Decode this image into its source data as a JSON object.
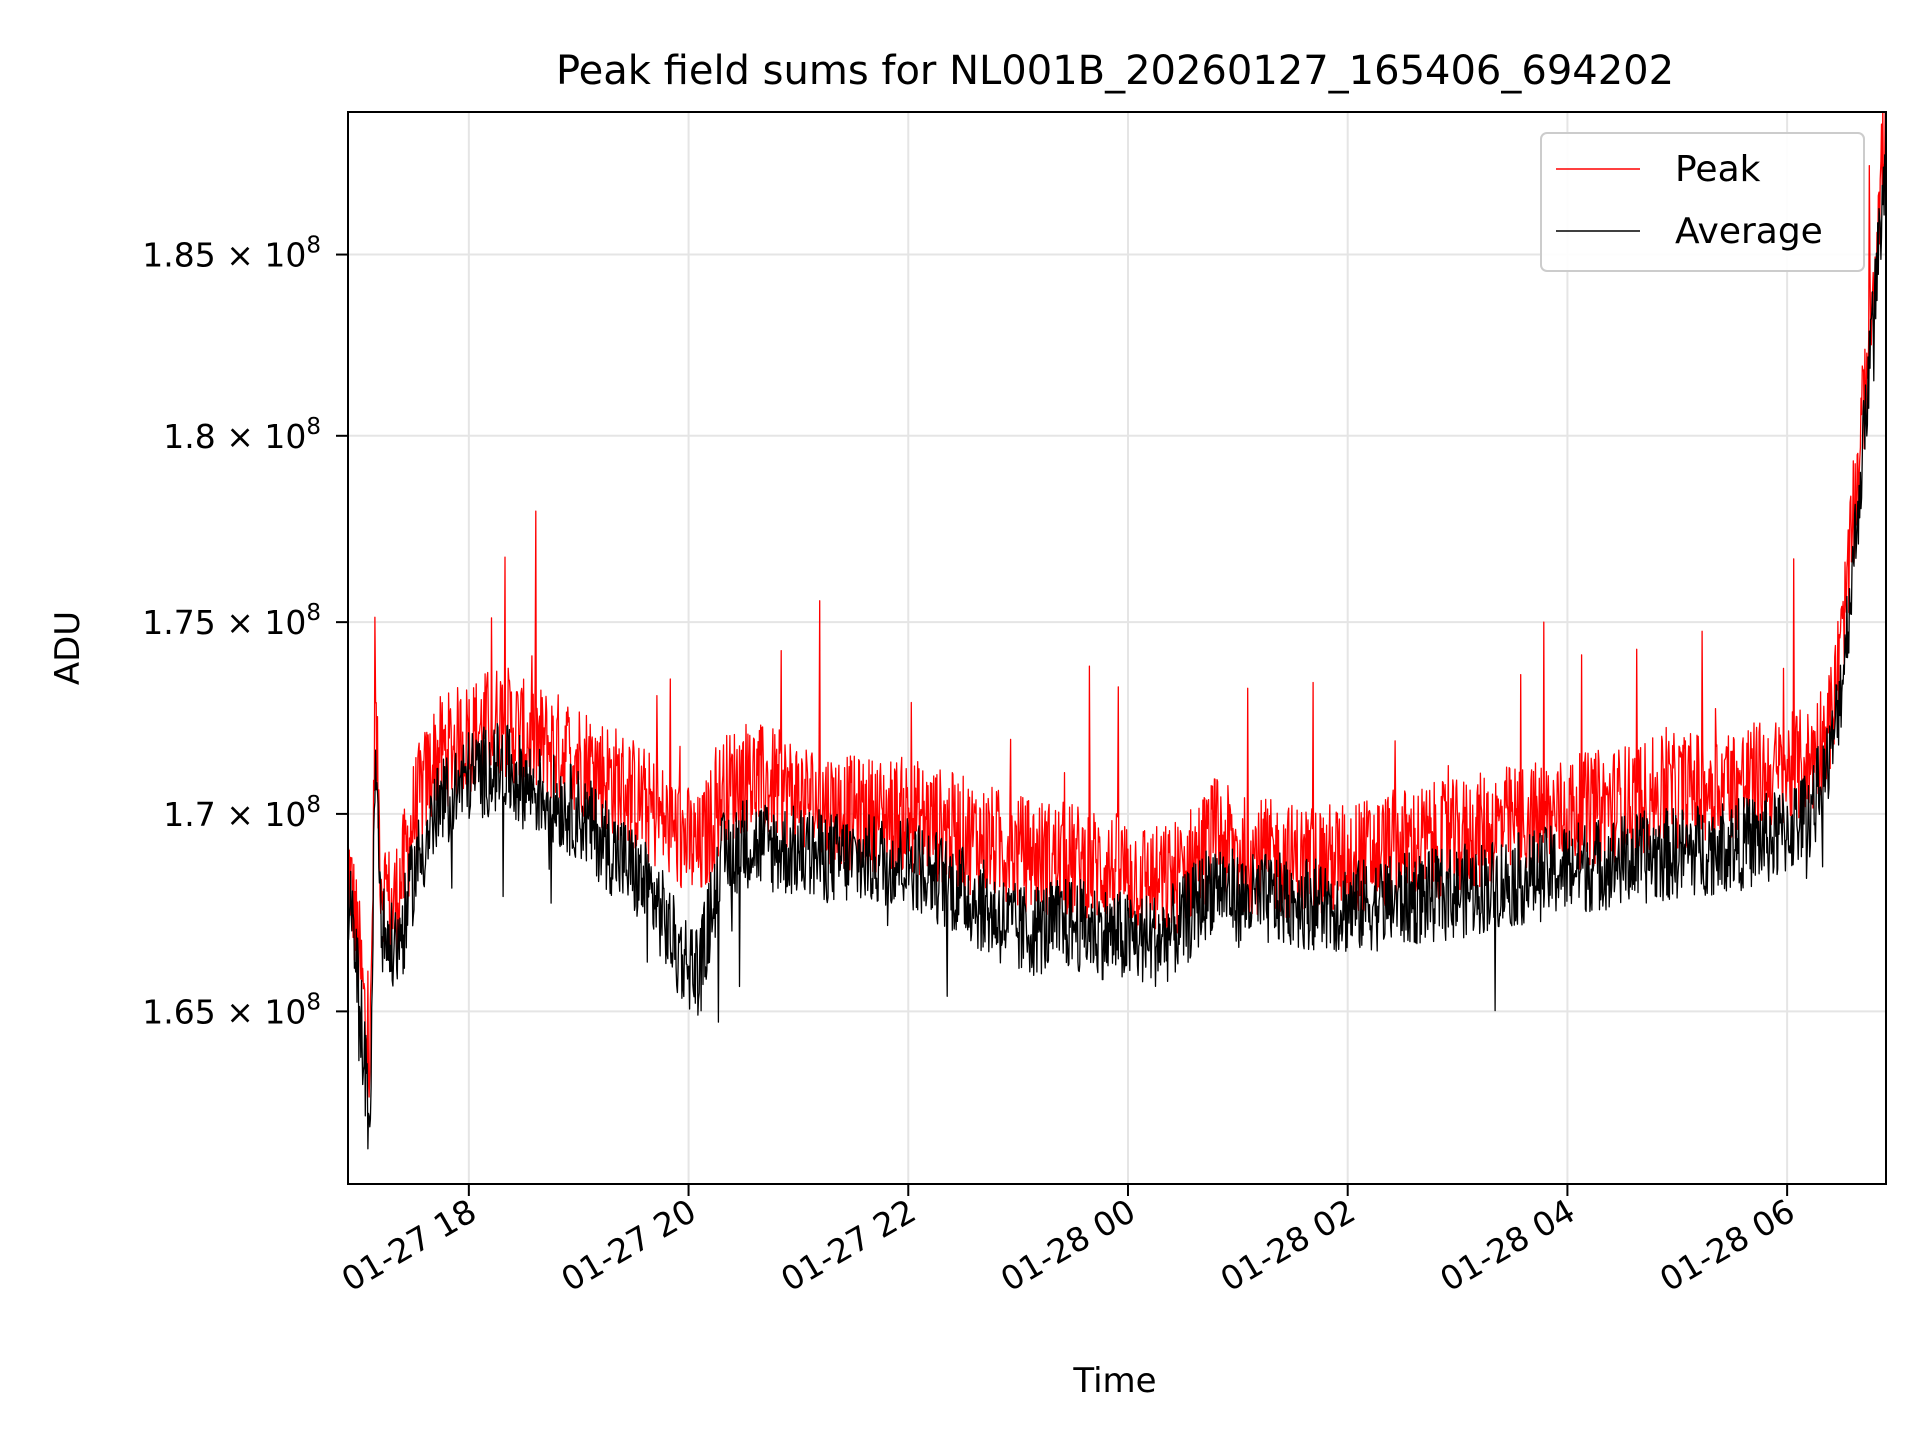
{
  "chart_data": {
    "type": "line",
    "title": "Peak field sums for NL001B_20260127_165406_694202",
    "xlabel": "Time",
    "ylabel": "ADU",
    "x_unit": "hours since 2026-01-27 00:00",
    "xlim": [
      16.9,
      30.9
    ],
    "ylim": [
      160750000.0,
      189030000.0
    ],
    "y_scale": "log",
    "grid": true,
    "legend_position": "top-right",
    "x_ticks": [
      {
        "value": 18,
        "label": "01-27 18"
      },
      {
        "value": 20,
        "label": "01-27 20"
      },
      {
        "value": 22,
        "label": "01-27 22"
      },
      {
        "value": 24,
        "label": "01-28 00"
      },
      {
        "value": 26,
        "label": "01-28 02"
      },
      {
        "value": 28,
        "label": "01-28 04"
      },
      {
        "value": 30,
        "label": "01-28 06"
      }
    ],
    "y_ticks": [
      {
        "value": 165000000.0,
        "mantissa": "1.65",
        "exponent": "8"
      },
      {
        "value": 170000000.0,
        "mantissa": "1.7",
        "exponent": "8"
      },
      {
        "value": 175000000.0,
        "mantissa": "1.75",
        "exponent": "8"
      },
      {
        "value": 180000000.0,
        "mantissa": "1.8",
        "exponent": "8"
      },
      {
        "value": 185000000.0,
        "mantissa": "1.85",
        "exponent": "8"
      }
    ],
    "series": [
      {
        "name": "Peak",
        "color": "#ff0000",
        "x": [
          16.9,
          17.0,
          17.1,
          17.15,
          17.2,
          17.3,
          17.4,
          17.5,
          17.7,
          18.0,
          18.3,
          18.5,
          19.0,
          19.5,
          19.7,
          19.9,
          20.1,
          20.3,
          20.5,
          21.0,
          21.5,
          22.0,
          22.5,
          23.0,
          23.5,
          24.0,
          24.3,
          24.5,
          24.8,
          25.0,
          25.5,
          26.0,
          26.5,
          27.0,
          27.5,
          28.0,
          28.5,
          29.0,
          29.5,
          29.9,
          30.2,
          30.4,
          30.5,
          30.6,
          30.7,
          30.8,
          30.9
        ],
        "values": [
          168800000.0,
          166500000.0,
          163500000.0,
          172500000.0,
          168500000.0,
          167500000.0,
          168500000.0,
          170000000.0,
          171500000.0,
          172000000.0,
          172500000.0,
          172000000.0,
          171500000.0,
          170500000.0,
          170000000.0,
          169500000.0,
          169000000.0,
          170500000.0,
          171000000.0,
          170500000.0,
          170000000.0,
          170000000.0,
          169500000.0,
          169000000.0,
          168800000.0,
          168500000.0,
          168200000.0,
          168500000.0,
          169500000.0,
          169000000.0,
          168800000.0,
          168800000.0,
          169200000.0,
          169400000.0,
          169800000.0,
          170000000.0,
          170300000.0,
          170600000.0,
          170800000.0,
          171000000.0,
          171300000.0,
          172500000.0,
          174500000.0,
          177500000.0,
          181000000.0,
          185000000.0,
          189000000.0
        ]
      },
      {
        "name": "Average",
        "color": "#000000",
        "x": [
          16.9,
          17.0,
          17.1,
          17.15,
          17.2,
          17.3,
          17.4,
          17.5,
          17.7,
          18.0,
          18.3,
          18.5,
          19.0,
          19.5,
          19.7,
          19.9,
          20.1,
          20.3,
          20.5,
          21.0,
          21.5,
          22.0,
          22.5,
          23.0,
          23.5,
          24.0,
          24.3,
          24.5,
          24.8,
          25.0,
          25.5,
          26.0,
          26.5,
          27.0,
          27.5,
          28.0,
          28.5,
          29.0,
          29.5,
          29.9,
          30.2,
          30.4,
          30.5,
          30.6,
          30.7,
          30.8,
          30.9
        ],
        "values": [
          168000000.0,
          165500000.0,
          162000000.0,
          171500000.0,
          167200000.0,
          166500000.0,
          167000000.0,
          168500000.0,
          170000000.0,
          171000000.0,
          171200000.0,
          170800000.0,
          170000000.0,
          168500000.0,
          167800000.0,
          166500000.0,
          166000000.0,
          168800000.0,
          169300000.0,
          169000000.0,
          168800000.0,
          168800000.0,
          168000000.0,
          167000000.0,
          167200000.0,
          166800000.0,
          166800000.0,
          167200000.0,
          168300000.0,
          167800000.0,
          167800000.0,
          167600000.0,
          167800000.0,
          168000000.0,
          168300000.0,
          168600000.0,
          168800000.0,
          169000000.0,
          169200000.0,
          169400000.0,
          170000000.0,
          171500000.0,
          173500000.0,
          176500000.0,
          180000000.0,
          184000000.0,
          187500000.0
        ]
      }
    ]
  }
}
